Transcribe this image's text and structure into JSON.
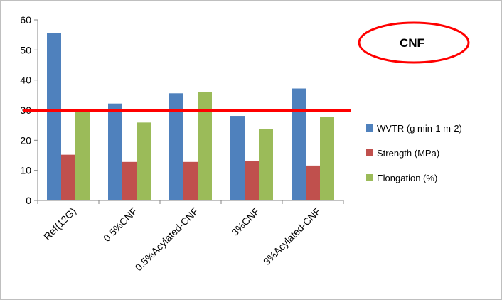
{
  "chart_data": {
    "type": "bar",
    "categories": [
      "Ref(12G)",
      "0.5%CNF",
      "0.5%Acylated-CNF",
      "3%CNF",
      "3%Acylated-CNF"
    ],
    "series": [
      {
        "name": "WVTR (g min-1 m-2)",
        "values": [
          55.7,
          32.2,
          35.6,
          28.1,
          37.2
        ],
        "color": "#4f81bd"
      },
      {
        "name": "Strength (MPa)",
        "values": [
          15.2,
          12.8,
          12.8,
          13.0,
          11.6
        ],
        "color": "#c0504d"
      },
      {
        "name": "Elongation (%)",
        "values": [
          30.0,
          25.9,
          36.1,
          23.7,
          27.8
        ],
        "color": "#9bbb59"
      }
    ],
    "ylim": [
      0,
      60
    ],
    "yticks": [
      0,
      10,
      20,
      30,
      40,
      50,
      60
    ],
    "grid": false,
    "legend_position": "right",
    "reference_line": {
      "y": 30,
      "color": "#ff0000"
    },
    "annotation": {
      "text": "CNF",
      "shape": "ellipse",
      "color": "#ff0000"
    }
  }
}
